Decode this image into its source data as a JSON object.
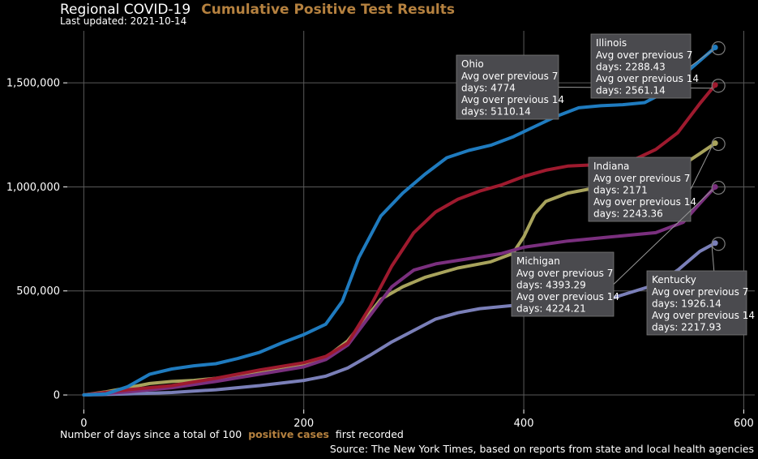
{
  "header": {
    "title": "Regional COVID-19",
    "title_accent": "Cumulative Positive Test Results",
    "subtitle": "Last updated: 2021-10-14"
  },
  "footer": {
    "xlabel_prefix": "Number of days since a total of 100",
    "xlabel_accent": "positive cases",
    "xlabel_suffix": "first recorded",
    "source": "Source: The New York Times, based on reports from state and local health agencies"
  },
  "colors": {
    "background": "#000000",
    "grid": "#5a5a5a",
    "accent": "#b5813f",
    "tooltip_bg": "#4a4a4e"
  },
  "chart_data": {
    "type": "line",
    "xlim": [
      -15,
      610
    ],
    "ylim": [
      -70000,
      1750000
    ],
    "xticks": [
      0,
      200,
      400,
      600
    ],
    "xtick_labels": [
      "0",
      "200",
      "400",
      "600"
    ],
    "yticks": [
      0,
      500000,
      1000000,
      1500000
    ],
    "ytick_labels": [
      "0",
      "500,000",
      "1,000,000",
      "1,500,000"
    ],
    "grid": true,
    "series": [
      {
        "name": "Kentucky",
        "color": "#7a7fb8",
        "points": [
          [
            0,
            0
          ],
          [
            40,
            5000
          ],
          [
            80,
            12000
          ],
          [
            120,
            25000
          ],
          [
            160,
            45000
          ],
          [
            200,
            70000
          ],
          [
            220,
            90000
          ],
          [
            240,
            130000
          ],
          [
            260,
            190000
          ],
          [
            280,
            255000
          ],
          [
            300,
            310000
          ],
          [
            320,
            365000
          ],
          [
            340,
            395000
          ],
          [
            360,
            415000
          ],
          [
            400,
            435000
          ],
          [
            440,
            450000
          ],
          [
            480,
            465000
          ],
          [
            520,
            530000
          ],
          [
            540,
            600000
          ],
          [
            560,
            690000
          ],
          [
            574,
            730000
          ]
        ],
        "tooltip": {
          "title": "Kentucky",
          "lines": [
            "Avg over previous 7",
            "days: 1926.14",
            "Avg over previous 14",
            "days: 2217.93"
          ]
        }
      },
      {
        "name": "Indiana",
        "color": "#a8a35c",
        "points": [
          [
            0,
            0
          ],
          [
            20,
            15000
          ],
          [
            40,
            35000
          ],
          [
            60,
            55000
          ],
          [
            80,
            65000
          ],
          [
            100,
            70000
          ],
          [
            120,
            80000
          ],
          [
            160,
            105000
          ],
          [
            200,
            140000
          ],
          [
            220,
            180000
          ],
          [
            240,
            260000
          ],
          [
            255,
            360000
          ],
          [
            270,
            460000
          ],
          [
            290,
            520000
          ],
          [
            310,
            565000
          ],
          [
            340,
            610000
          ],
          [
            370,
            640000
          ],
          [
            390,
            680000
          ],
          [
            400,
            760000
          ],
          [
            410,
            870000
          ],
          [
            420,
            930000
          ],
          [
            440,
            970000
          ],
          [
            460,
            990000
          ],
          [
            480,
            995000
          ],
          [
            500,
            1010000
          ],
          [
            520,
            1040000
          ],
          [
            540,
            1090000
          ],
          [
            560,
            1160000
          ],
          [
            574,
            1210000
          ]
        ],
        "tooltip": {
          "title": "Indiana",
          "lines": [
            "Avg over previous 7",
            "days: 2171",
            "Avg over previous 14",
            "days: 2243.36"
          ]
        }
      },
      {
        "name": "Michigan",
        "color": "#7a2f7e",
        "points": [
          [
            0,
            0
          ],
          [
            40,
            15000
          ],
          [
            80,
            35000
          ],
          [
            120,
            65000
          ],
          [
            160,
            100000
          ],
          [
            200,
            135000
          ],
          [
            220,
            170000
          ],
          [
            240,
            240000
          ],
          [
            260,
            380000
          ],
          [
            280,
            520000
          ],
          [
            300,
            600000
          ],
          [
            320,
            630000
          ],
          [
            350,
            655000
          ],
          [
            380,
            680000
          ],
          [
            400,
            710000
          ],
          [
            440,
            740000
          ],
          [
            480,
            760000
          ],
          [
            520,
            780000
          ],
          [
            545,
            830000
          ],
          [
            560,
            920000
          ],
          [
            574,
            1000000
          ]
        ],
        "tooltip": {
          "title": "Michigan",
          "lines": [
            "Avg over previous 7",
            "days: 4393.29",
            "Avg over previous 14",
            "days: 4224.21"
          ]
        }
      },
      {
        "name": "Ohio",
        "color": "#9e1a2e",
        "points": [
          [
            0,
            0
          ],
          [
            40,
            25000
          ],
          [
            80,
            45000
          ],
          [
            120,
            80000
          ],
          [
            160,
            120000
          ],
          [
            200,
            155000
          ],
          [
            220,
            185000
          ],
          [
            240,
            250000
          ],
          [
            260,
            420000
          ],
          [
            280,
            620000
          ],
          [
            300,
            780000
          ],
          [
            320,
            880000
          ],
          [
            340,
            940000
          ],
          [
            360,
            980000
          ],
          [
            380,
            1010000
          ],
          [
            400,
            1050000
          ],
          [
            420,
            1080000
          ],
          [
            440,
            1100000
          ],
          [
            460,
            1105000
          ],
          [
            480,
            1110000
          ],
          [
            500,
            1130000
          ],
          [
            520,
            1180000
          ],
          [
            540,
            1260000
          ],
          [
            560,
            1400000
          ],
          [
            574,
            1490000
          ]
        ],
        "tooltip": {
          "title": "Ohio",
          "lines": [
            "Avg over previous 7",
            "days: 4774",
            "Avg over previous 14",
            "days: 5110.14"
          ]
        }
      },
      {
        "name": "Illinois",
        "color": "#1f7bbf",
        "points": [
          [
            0,
            0
          ],
          [
            20,
            5000
          ],
          [
            40,
            40000
          ],
          [
            60,
            100000
          ],
          [
            80,
            125000
          ],
          [
            100,
            140000
          ],
          [
            120,
            150000
          ],
          [
            140,
            175000
          ],
          [
            160,
            205000
          ],
          [
            180,
            250000
          ],
          [
            200,
            290000
          ],
          [
            220,
            340000
          ],
          [
            235,
            450000
          ],
          [
            250,
            660000
          ],
          [
            270,
            860000
          ],
          [
            290,
            970000
          ],
          [
            310,
            1060000
          ],
          [
            330,
            1140000
          ],
          [
            350,
            1175000
          ],
          [
            370,
            1200000
          ],
          [
            390,
            1240000
          ],
          [
            410,
            1290000
          ],
          [
            430,
            1340000
          ],
          [
            450,
            1380000
          ],
          [
            470,
            1390000
          ],
          [
            490,
            1395000
          ],
          [
            510,
            1405000
          ],
          [
            530,
            1460000
          ],
          [
            550,
            1560000
          ],
          [
            574,
            1670000
          ]
        ],
        "tooltip": {
          "title": "Illinois",
          "lines": [
            "Avg over previous 7",
            "days: 2288.43",
            "Avg over previous 14",
            "days: 2561.14"
          ]
        }
      }
    ]
  }
}
